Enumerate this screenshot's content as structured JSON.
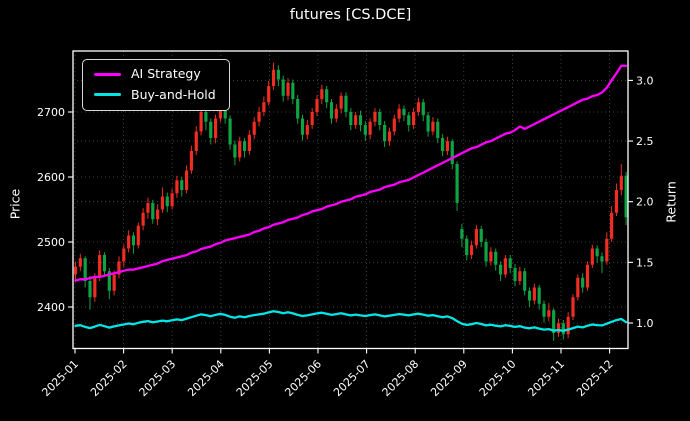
{
  "window": {
    "title": "futures [CS.DCE]"
  },
  "chart_data": {
    "type": "candlestick",
    "title": "futures [CS.DCE]",
    "grid": true,
    "legend_position": "upper left",
    "x_tick_labels": [
      "2025-01",
      "2025-02",
      "2025-03",
      "2025-04",
      "2025-05",
      "2025-06",
      "2025-07",
      "2025-08",
      "2025-09",
      "2025-10",
      "2025-11",
      "2025-12"
    ],
    "left_axis": {
      "label": "Price",
      "ticks": [
        2400,
        2500,
        2600,
        2700
      ],
      "range": [
        2336,
        2794
      ]
    },
    "right_axis": {
      "label": "Return",
      "ticks": [
        "1.0",
        "1.5",
        "2.0",
        "2.5",
        "3.0"
      ],
      "range": [
        0.79,
        3.24
      ]
    },
    "legend": [
      {
        "label": "AI Strategy",
        "color": "#ff00ff"
      },
      {
        "label": "Buy-and-Hold",
        "color": "#00e6e6"
      }
    ],
    "colors": {
      "up": "#ef2d23",
      "down": "#10a344",
      "grid": "#4d4d4d",
      "background": "#000000",
      "text": "#ffffff",
      "frame": "#ffffff"
    },
    "candles": [
      [
        2450,
        2470,
        2438,
        2462
      ],
      [
        2462,
        2482,
        2455,
        2475
      ],
      [
        2475,
        2478,
        2430,
        2440
      ],
      [
        2440,
        2448,
        2396,
        2415
      ],
      [
        2415,
        2452,
        2408,
        2445
      ],
      [
        2445,
        2487,
        2440,
        2480
      ],
      [
        2480,
        2484,
        2448,
        2455
      ],
      [
        2455,
        2460,
        2412,
        2425
      ],
      [
        2425,
        2456,
        2418,
        2450
      ],
      [
        2450,
        2478,
        2444,
        2470
      ],
      [
        2470,
        2496,
        2462,
        2490
      ],
      [
        2490,
        2518,
        2484,
        2510
      ],
      [
        2510,
        2515,
        2482,
        2495
      ],
      [
        2495,
        2530,
        2490,
        2525
      ],
      [
        2525,
        2552,
        2518,
        2545
      ],
      [
        2545,
        2568,
        2536,
        2560
      ],
      [
        2560,
        2565,
        2528,
        2535
      ],
      [
        2535,
        2558,
        2526,
        2550
      ],
      [
        2550,
        2584,
        2545,
        2570
      ],
      [
        2570,
        2576,
        2546,
        2555
      ],
      [
        2555,
        2582,
        2550,
        2575
      ],
      [
        2575,
        2602,
        2568,
        2595
      ],
      [
        2595,
        2600,
        2570,
        2580
      ],
      [
        2580,
        2618,
        2575,
        2610
      ],
      [
        2610,
        2648,
        2605,
        2640
      ],
      [
        2640,
        2678,
        2634,
        2670
      ],
      [
        2670,
        2712,
        2664,
        2700
      ],
      [
        2700,
        2708,
        2672,
        2685
      ],
      [
        2685,
        2690,
        2650,
        2660
      ],
      [
        2660,
        2696,
        2652,
        2690
      ],
      [
        2690,
        2722,
        2684,
        2710
      ],
      [
        2710,
        2730,
        2682,
        2690
      ],
      [
        2690,
        2695,
        2642,
        2650
      ],
      [
        2650,
        2656,
        2618,
        2630
      ],
      [
        2630,
        2662,
        2624,
        2655
      ],
      [
        2655,
        2660,
        2630,
        2640
      ],
      [
        2640,
        2672,
        2634,
        2665
      ],
      [
        2665,
        2692,
        2658,
        2685
      ],
      [
        2685,
        2708,
        2678,
        2700
      ],
      [
        2700,
        2724,
        2694,
        2715
      ],
      [
        2715,
        2748,
        2710,
        2740
      ],
      [
        2740,
        2776,
        2734,
        2765
      ],
      [
        2765,
        2772,
        2740,
        2750
      ],
      [
        2750,
        2756,
        2716,
        2725
      ],
      [
        2725,
        2752,
        2718,
        2745
      ],
      [
        2745,
        2750,
        2712,
        2720
      ],
      [
        2720,
        2726,
        2682,
        2690
      ],
      [
        2690,
        2696,
        2656,
        2665
      ],
      [
        2665,
        2688,
        2658,
        2680
      ],
      [
        2680,
        2706,
        2674,
        2700
      ],
      [
        2700,
        2726,
        2694,
        2720
      ],
      [
        2720,
        2742,
        2712,
        2735
      ],
      [
        2735,
        2740,
        2706,
        2715
      ],
      [
        2715,
        2720,
        2682,
        2690
      ],
      [
        2690,
        2712,
        2684,
        2705
      ],
      [
        2705,
        2730,
        2698,
        2725
      ],
      [
        2725,
        2730,
        2692,
        2700
      ],
      [
        2700,
        2706,
        2672,
        2680
      ],
      [
        2680,
        2700,
        2674,
        2695
      ],
      [
        2695,
        2702,
        2670,
        2680
      ],
      [
        2680,
        2686,
        2656,
        2665
      ],
      [
        2665,
        2690,
        2658,
        2685
      ],
      [
        2685,
        2706,
        2678,
        2700
      ],
      [
        2700,
        2705,
        2672,
        2680
      ],
      [
        2680,
        2686,
        2646,
        2655
      ],
      [
        2655,
        2676,
        2648,
        2670
      ],
      [
        2670,
        2696,
        2664,
        2690
      ],
      [
        2690,
        2712,
        2684,
        2705
      ],
      [
        2705,
        2710,
        2686,
        2695
      ],
      [
        2695,
        2700,
        2670,
        2680
      ],
      [
        2680,
        2706,
        2674,
        2700
      ],
      [
        2700,
        2722,
        2694,
        2715
      ],
      [
        2715,
        2720,
        2686,
        2695
      ],
      [
        2695,
        2700,
        2662,
        2670
      ],
      [
        2670,
        2692,
        2664,
        2685
      ],
      [
        2685,
        2690,
        2652,
        2660
      ],
      [
        2660,
        2666,
        2632,
        2640
      ],
      [
        2640,
        2662,
        2634,
        2655
      ],
      [
        2655,
        2658,
        2612,
        2620
      ],
      [
        2620,
        2624,
        2548,
        2560
      ],
      [
        2520,
        2528,
        2492,
        2505
      ],
      [
        2505,
        2510,
        2472,
        2480
      ],
      [
        2480,
        2502,
        2474,
        2495
      ],
      [
        2495,
        2526,
        2490,
        2520
      ],
      [
        2520,
        2525,
        2492,
        2500
      ],
      [
        2500,
        2505,
        2462,
        2470
      ],
      [
        2470,
        2492,
        2464,
        2485
      ],
      [
        2485,
        2490,
        2456,
        2465
      ],
      [
        2465,
        2470,
        2440,
        2450
      ],
      [
        2450,
        2480,
        2445,
        2475
      ],
      [
        2475,
        2480,
        2452,
        2460
      ],
      [
        2460,
        2466,
        2432,
        2440
      ],
      [
        2440,
        2462,
        2434,
        2455
      ],
      [
        2455,
        2460,
        2418,
        2425
      ],
      [
        2425,
        2430,
        2400,
        2410
      ],
      [
        2410,
        2436,
        2404,
        2430
      ],
      [
        2430,
        2434,
        2396,
        2405
      ],
      [
        2405,
        2410,
        2376,
        2385
      ],
      [
        2385,
        2406,
        2378,
        2395
      ],
      [
        2395,
        2398,
        2348,
        2360
      ],
      [
        2360,
        2382,
        2354,
        2375
      ],
      [
        2375,
        2380,
        2350,
        2358
      ],
      [
        2358,
        2392,
        2352,
        2385
      ],
      [
        2385,
        2420,
        2380,
        2415
      ],
      [
        2415,
        2450,
        2410,
        2445
      ],
      [
        2445,
        2452,
        2422,
        2430
      ],
      [
        2430,
        2470,
        2425,
        2465
      ],
      [
        2465,
        2496,
        2460,
        2490
      ],
      [
        2490,
        2495,
        2468,
        2478
      ],
      [
        2478,
        2484,
        2452,
        2470
      ],
      [
        2470,
        2515,
        2465,
        2505
      ],
      [
        2505,
        2555,
        2500,
        2545
      ],
      [
        2545,
        2590,
        2540,
        2580
      ],
      [
        2580,
        2620,
        2572,
        2602
      ],
      [
        2602,
        2608,
        2526,
        2538
      ]
    ],
    "series": [
      {
        "name": "AI Strategy",
        "axis": "right",
        "color": "#ff00ff",
        "values": [
          1.35,
          1.36,
          1.36,
          1.37,
          1.38,
          1.38,
          1.39,
          1.4,
          1.41,
          1.42,
          1.43,
          1.44,
          1.44,
          1.45,
          1.46,
          1.47,
          1.48,
          1.49,
          1.51,
          1.52,
          1.53,
          1.54,
          1.55,
          1.56,
          1.58,
          1.59,
          1.61,
          1.62,
          1.63,
          1.65,
          1.66,
          1.68,
          1.69,
          1.7,
          1.71,
          1.72,
          1.73,
          1.75,
          1.76,
          1.78,
          1.79,
          1.81,
          1.82,
          1.83,
          1.85,
          1.86,
          1.87,
          1.89,
          1.9,
          1.92,
          1.93,
          1.94,
          1.96,
          1.97,
          1.98,
          2.0,
          2.01,
          2.02,
          2.04,
          2.05,
          2.06,
          2.08,
          2.09,
          2.1,
          2.12,
          2.13,
          2.14,
          2.16,
          2.17,
          2.18,
          2.2,
          2.22,
          2.24,
          2.26,
          2.28,
          2.3,
          2.32,
          2.34,
          2.36,
          2.38,
          2.4,
          2.42,
          2.44,
          2.45,
          2.47,
          2.49,
          2.5,
          2.52,
          2.54,
          2.56,
          2.57,
          2.59,
          2.62,
          2.6,
          2.62,
          2.64,
          2.66,
          2.68,
          2.7,
          2.72,
          2.74,
          2.76,
          2.78,
          2.8,
          2.82,
          2.84,
          2.85,
          2.87,
          2.88,
          2.9,
          2.94,
          3.0,
          3.06,
          3.12,
          3.12
        ]
      },
      {
        "name": "Buy-and-Hold",
        "axis": "right",
        "color": "#00e6e6",
        "values": [
          0.977,
          0.982,
          0.968,
          0.958,
          0.97,
          0.984,
          0.974,
          0.962,
          0.972,
          0.98,
          0.988,
          0.996,
          0.99,
          1.002,
          1.01,
          1.016,
          1.006,
          1.012,
          1.02,
          1.014,
          1.022,
          1.03,
          1.024,
          1.036,
          1.048,
          1.06,
          1.071,
          1.065,
          1.056,
          1.067,
          1.075,
          1.067,
          1.052,
          1.044,
          1.054,
          1.048,
          1.058,
          1.065,
          1.071,
          1.077,
          1.087,
          1.097,
          1.091,
          1.081,
          1.089,
          1.079,
          1.067,
          1.058,
          1.063,
          1.071,
          1.079,
          1.085,
          1.077,
          1.067,
          1.073,
          1.081,
          1.071,
          1.063,
          1.069,
          1.063,
          1.058,
          1.065,
          1.071,
          1.063,
          1.054,
          1.06,
          1.067,
          1.073,
          1.069,
          1.063,
          1.071,
          1.077,
          1.069,
          1.06,
          1.065,
          1.056,
          1.048,
          1.054,
          1.04,
          1.016,
          0.994,
          0.984,
          0.99,
          1.0,
          0.992,
          0.98,
          0.986,
          0.978,
          0.972,
          0.982,
          0.976,
          0.968,
          0.974,
          0.962,
          0.956,
          0.964,
          0.954,
          0.946,
          0.95,
          0.937,
          0.942,
          0.936,
          0.946,
          0.958,
          0.97,
          0.964,
          0.978,
          0.988,
          0.983,
          0.98,
          0.994,
          1.01,
          1.024,
          1.033,
          1.007
        ]
      }
    ]
  }
}
